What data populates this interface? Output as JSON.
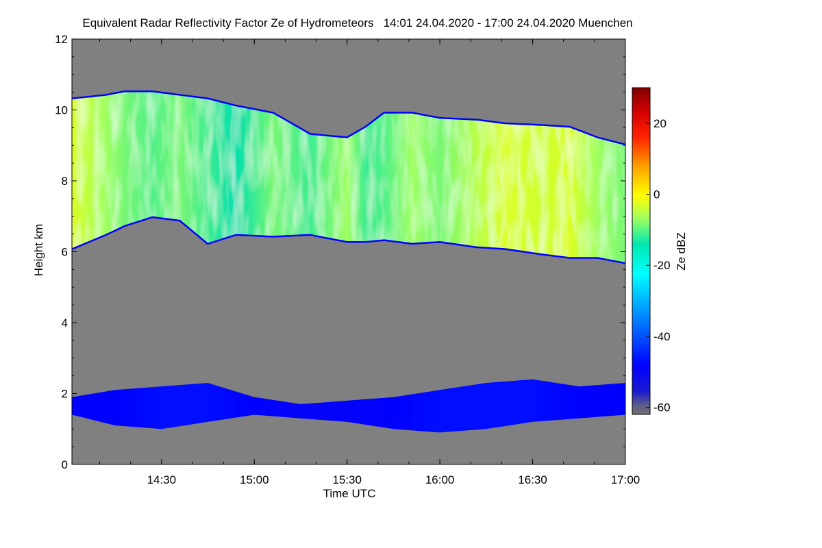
{
  "chart_data": {
    "type": "heatmap",
    "title": "Equivalent Radar Reflectivity Factor Ze of Hydrometeors   14:01 24.04.2020 - 17:00 24.04.2020 Muenchen",
    "xlabel": "Time UTC",
    "ylabel": "Height km",
    "x_range_hours": [
      14.017,
      17.0
    ],
    "x_ticks": [
      {
        "hour": 14.5,
        "label": "14:30"
      },
      {
        "hour": 15.0,
        "label": "15:00"
      },
      {
        "hour": 15.5,
        "label": "15:30"
      },
      {
        "hour": 16.0,
        "label": "16:00"
      },
      {
        "hour": 16.5,
        "label": "16:30"
      },
      {
        "hour": 17.0,
        "label": "17:00"
      }
    ],
    "ylim": [
      0,
      12
    ],
    "y_ticks": [
      {
        "value": 0,
        "label": "0"
      },
      {
        "value": 2,
        "label": "2"
      },
      {
        "value": 4,
        "label": "4"
      },
      {
        "value": 6,
        "label": "6"
      },
      {
        "value": 8,
        "label": "8"
      },
      {
        "value": 10,
        "label": "10"
      },
      {
        "value": 12,
        "label": "12"
      }
    ],
    "background_color": "#808080",
    "colorbar": {
      "label": "Ze dBZ",
      "range": [
        -62,
        30
      ],
      "ticks": [
        {
          "value": 20,
          "label": "20"
        },
        {
          "value": 0,
          "label": "0"
        },
        {
          "value": -20,
          "label": "-20"
        },
        {
          "value": -40,
          "label": "-40"
        },
        {
          "value": -60,
          "label": "-60"
        }
      ]
    },
    "layers": [
      {
        "hours": [
          14.017,
          14.2,
          14.3,
          14.45,
          14.6,
          14.75,
          14.9,
          15.1,
          15.3,
          15.5,
          15.6,
          15.7,
          15.85,
          16.0,
          16.2,
          16.35,
          16.55,
          16.7,
          16.85,
          17.0
        ],
        "top_km": [
          10.3,
          10.4,
          10.5,
          10.5,
          10.4,
          10.3,
          10.1,
          9.9,
          9.3,
          9.2,
          9.5,
          9.9,
          9.9,
          9.75,
          9.7,
          9.6,
          9.55,
          9.5,
          9.2,
          9.0
        ],
        "base_km": [
          6.1,
          6.5,
          6.75,
          7.0,
          6.9,
          6.25,
          6.5,
          6.45,
          6.5,
          6.3,
          6.3,
          6.35,
          6.25,
          6.3,
          6.15,
          6.1,
          5.95,
          5.85,
          5.85,
          5.7
        ],
        "core_dbz": [
          -5,
          -10,
          -12,
          -14,
          -12,
          -15,
          -18,
          -12,
          -15,
          -10,
          -15,
          -14,
          -10,
          -12,
          -8,
          -5,
          -6,
          -5,
          -10,
          -12
        ]
      },
      {
        "hours": [
          14.017,
          14.25,
          14.5,
          14.75,
          15.0,
          15.25,
          15.5,
          15.75,
          16.0,
          16.25,
          16.5,
          16.75,
          17.0
        ],
        "top_km": [
          1.9,
          2.1,
          2.2,
          2.3,
          1.9,
          1.7,
          1.8,
          1.9,
          2.1,
          2.3,
          2.4,
          2.2,
          2.3
        ],
        "base_km": [
          1.4,
          1.1,
          1.0,
          1.2,
          1.4,
          1.3,
          1.2,
          1.0,
          0.9,
          1.0,
          1.2,
          1.3,
          1.4
        ],
        "core_dbz": [
          -45,
          -45,
          -44,
          -44,
          -45,
          -46,
          -46,
          -45,
          -44,
          -44,
          -44,
          -45,
          -45
        ]
      }
    ]
  }
}
